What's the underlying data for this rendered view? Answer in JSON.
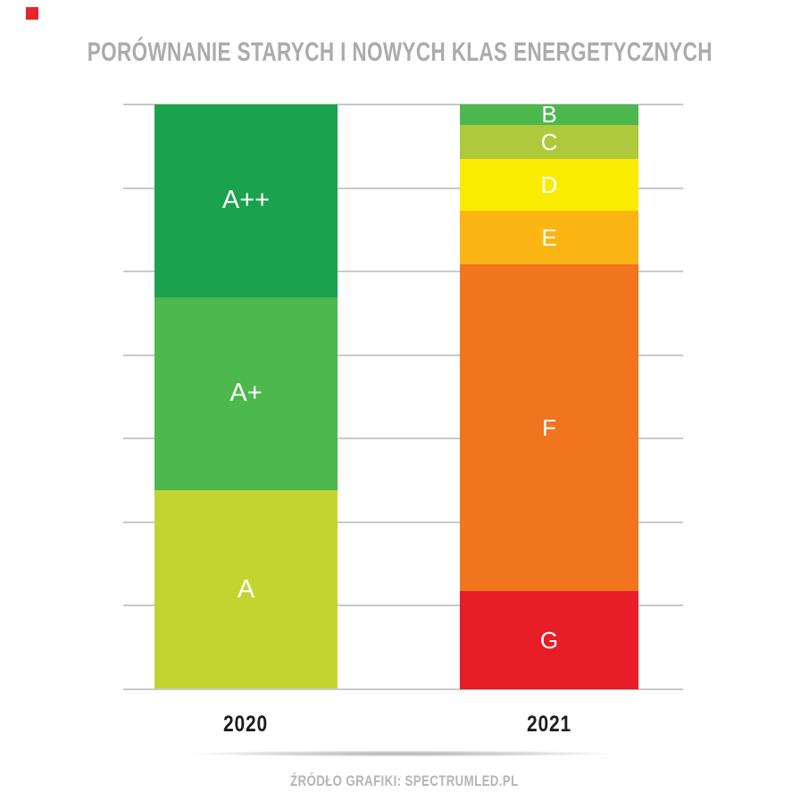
{
  "title": {
    "text": "PORÓWNANIE STARYCH I NOWYCH KLAS ENERGETYCZNYCH",
    "color": "#ababab"
  },
  "footer": {
    "text": "ŹRÓDŁO GRAFIKI: SPECTRUMLED.PL",
    "color": "#b5b5b5"
  },
  "corner_tag": {
    "color": "#e8232b"
  },
  "x_axis": {
    "labels": [
      "2020",
      "2021"
    ],
    "color": "#1d1d1b"
  },
  "chart_data": {
    "type": "bar",
    "stacked": true,
    "title": "PORÓWNANIE STARYCH I NOWYCH KLAS ENERGETYCZNYCH",
    "categories": [
      "2020",
      "2021"
    ],
    "ylabel": "",
    "xlabel": "",
    "value_unit": "percent of column height",
    "grid": {
      "horizontal_lines": 8,
      "color": "#c9c9c9",
      "visible": true
    },
    "legend": "none (labels drawn inside segments)",
    "bars": [
      {
        "category": "2020",
        "segments": [
          {
            "label": "A++",
            "value_pct": 33.0,
            "color": "#1aa24c"
          },
          {
            "label": "A+",
            "value_pct": 33.0,
            "color": "#4cb84e"
          },
          {
            "label": "A",
            "value_pct": 34.0,
            "color": "#c3d430"
          }
        ]
      },
      {
        "category": "2021",
        "segments": [
          {
            "label": "B",
            "value_pct": 3.5,
            "color": "#4cb84e"
          },
          {
            "label": "C",
            "value_pct": 5.8,
            "color": "#aeca3c"
          },
          {
            "label": "D",
            "value_pct": 8.9,
            "color": "#f9ec00"
          },
          {
            "label": "E",
            "value_pct": 9.2,
            "color": "#fbb615"
          },
          {
            "label": "F",
            "value_pct": 55.8,
            "color": "#f1751f"
          },
          {
            "label": "G",
            "value_pct": 16.9,
            "color": "#e71d28"
          }
        ]
      }
    ]
  }
}
